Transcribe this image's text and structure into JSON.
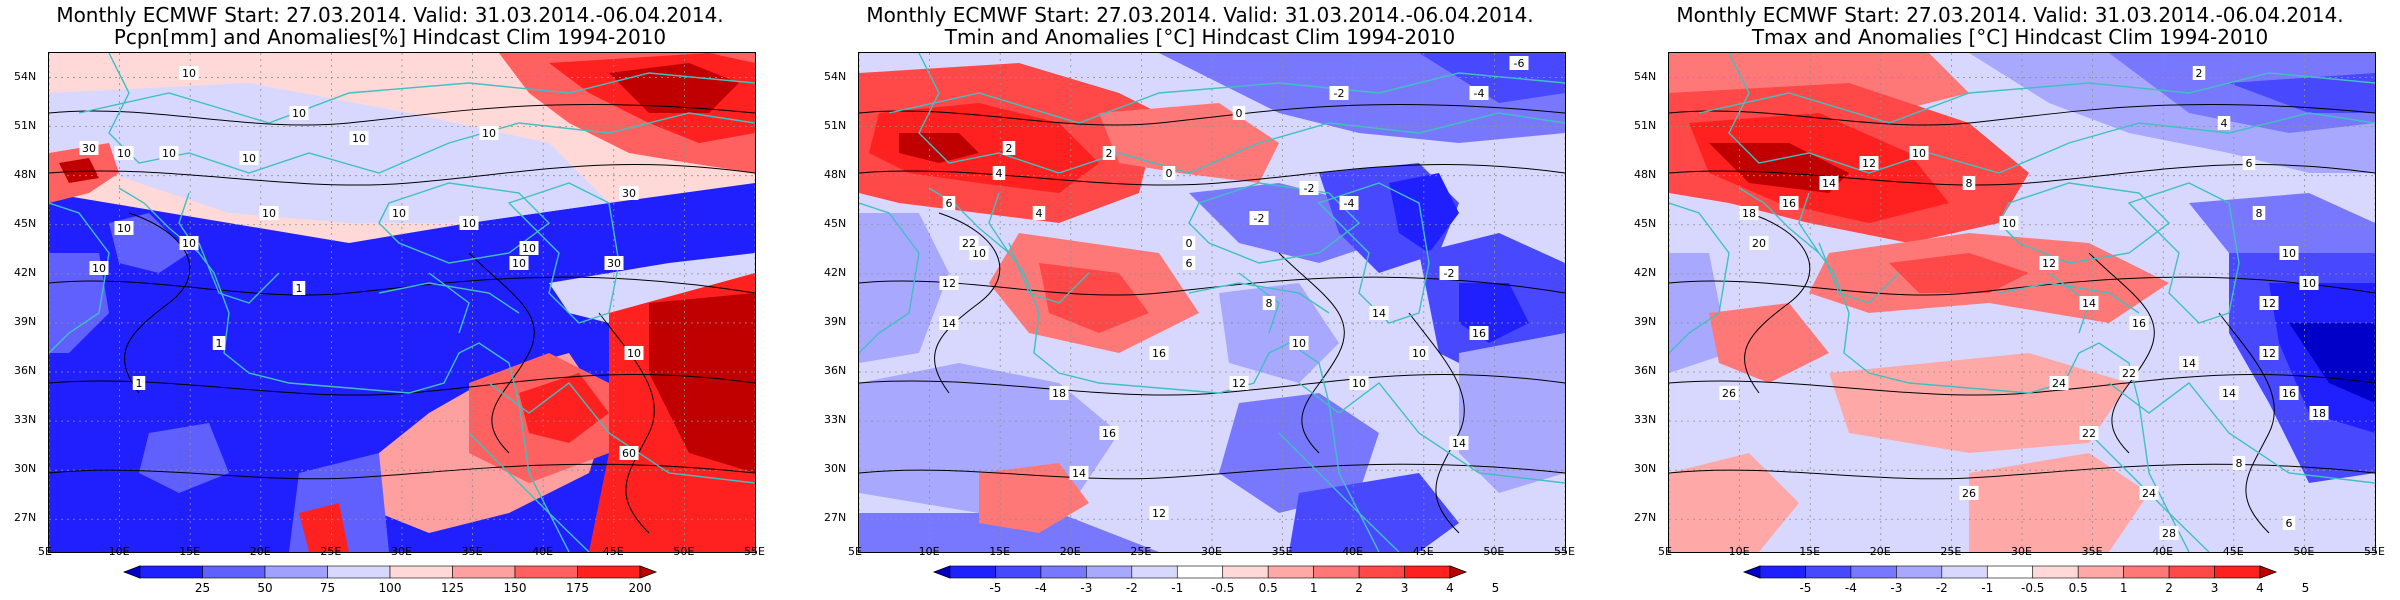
{
  "panels": [
    {
      "id": "pcpn",
      "title1": "Monthly ECMWF Start: 27.03.2014. Valid: 31.03.2014.-06.04.2014.",
      "title2": "Pcpn[mm] and Anomalies[%] Hindcast Clim 1994-2010",
      "colorbar": {
        "labels": [
          "25",
          "50",
          "75",
          "100",
          "125",
          "150",
          "175",
          "200"
        ],
        "colors": [
          "#0000c8",
          "#2020ff",
          "#6060ff",
          "#a0a0ff",
          "#d8d8ff",
          "#ffd8d8",
          "#ffa0a0",
          "#ff6060",
          "#ff2020",
          "#c00000"
        ]
      },
      "contour_labels": [
        "10",
        "10",
        "10",
        "10",
        "10",
        "30",
        "10",
        "10",
        "10",
        "10",
        "10",
        "10",
        "10",
        "10",
        "10",
        "10",
        "30",
        "30",
        "1",
        "1",
        "1",
        "10",
        "60"
      ]
    },
    {
      "id": "tmin",
      "title1": "Monthly ECMWF Start: 27.03.2014. Valid: 31.03.2014.-06.04.2014.",
      "title2": "Tmin and Anomalies [°C] Hindcast Clim 1994-2010",
      "colorbar": {
        "labels": [
          "-5",
          "-4",
          "-3",
          "-2",
          "-1",
          "-0.5",
          "0.5",
          "1",
          "2",
          "3",
          "4",
          "5"
        ],
        "colors": [
          "#0000c8",
          "#2020ff",
          "#4848ff",
          "#7878ff",
          "#a8a8ff",
          "#d8d8ff",
          "#ffffff",
          "#ffd8d8",
          "#ffa8a8",
          "#ff7878",
          "#ff4848",
          "#ff2020",
          "#c00000"
        ]
      },
      "contour_labels": [
        "-6",
        "-4",
        "-2",
        "0",
        "2",
        "4",
        "6",
        "4",
        "2",
        "0",
        "-2",
        "-4",
        "-2",
        "0",
        "6",
        "8",
        "10",
        "12",
        "14",
        "16",
        "18",
        "12",
        "10",
        "16",
        "14",
        "12",
        "10",
        "14",
        "16",
        "-2",
        "10",
        "14",
        "22"
      ]
    },
    {
      "id": "tmax",
      "title1": "Monthly ECMWF Start: 27.03.2014. Valid: 31.03.2014.-06.04.2014.",
      "title2": "Tmax and Anomalies [°C] Hindcast Clim 1994-2010",
      "colorbar": {
        "labels": [
          "-5",
          "-4",
          "-3",
          "-2",
          "-1",
          "-0.5",
          "0.5",
          "1",
          "2",
          "3",
          "4",
          "5"
        ],
        "colors": [
          "#0000c8",
          "#2020ff",
          "#4848ff",
          "#7878ff",
          "#a8a8ff",
          "#d8d8ff",
          "#ffffff",
          "#ffd8d8",
          "#ffa8a8",
          "#ff7878",
          "#ff4848",
          "#ff2020",
          "#c00000"
        ]
      },
      "contour_labels": [
        "2",
        "4",
        "6",
        "8",
        "10",
        "12",
        "14",
        "16",
        "14",
        "12",
        "10",
        "8",
        "10",
        "12",
        "14",
        "16",
        "18",
        "20",
        "22",
        "24",
        "26",
        "22",
        "24",
        "26",
        "28",
        "12",
        "16",
        "18",
        "10",
        "14",
        "8",
        "6"
      ]
    }
  ],
  "axes": {
    "lat_labels": [
      "54N",
      "51N",
      "48N",
      "45N",
      "42N",
      "39N",
      "36N",
      "33N",
      "30N",
      "27N"
    ],
    "lon_labels": [
      "5E",
      "10E",
      "15E",
      "20E",
      "25E",
      "30E",
      "35E",
      "40E",
      "45E",
      "50E",
      "55E"
    ]
  },
  "colors": {
    "coastline": "#40c0c0",
    "contour": "#000000",
    "grid": "#909090"
  }
}
